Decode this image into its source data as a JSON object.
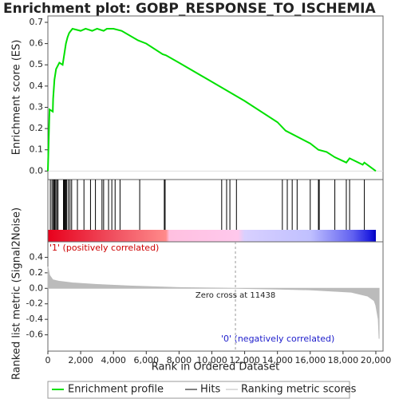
{
  "chart_data": [
    {
      "type": "line",
      "title": "Enrichment plot: GOBP_RESPONSE_TO_ISCHEMIA",
      "ylabel": "Enrichment score (ES)",
      "xlim": [
        0,
        20440
      ],
      "ylim": [
        -0.04,
        0.73
      ],
      "yticks": [
        {
          "value": 0,
          "label": "0.0"
        },
        {
          "value": 0.1,
          "label": "0.1"
        },
        {
          "value": 0.2,
          "label": "0.2"
        },
        {
          "value": 0.3,
          "label": "0.3"
        },
        {
          "value": 0.4,
          "label": "0.4"
        },
        {
          "value": 0.5,
          "label": "0.5"
        },
        {
          "value": 0.6,
          "label": "0.6"
        },
        {
          "value": 0.7,
          "label": "0.7"
        }
      ],
      "series": [
        {
          "name": "Enrichment profile",
          "color": "#00e000",
          "x": [
            0,
            100,
            300,
            320,
            400,
            500,
            700,
            900,
            1000,
            1100,
            1200,
            1300,
            1500,
            2000,
            2300,
            2700,
            3000,
            3400,
            3600,
            4000,
            4500,
            5500,
            6000,
            7000,
            7200,
            8000,
            10000,
            12000,
            14000,
            14500,
            16000,
            16500,
            17000,
            17500,
            18200,
            18400,
            19200,
            19300,
            20000
          ],
          "values": [
            0,
            0.29,
            0.28,
            0.34,
            0.43,
            0.48,
            0.51,
            0.5,
            0.55,
            0.6,
            0.63,
            0.65,
            0.67,
            0.66,
            0.67,
            0.66,
            0.67,
            0.66,
            0.67,
            0.67,
            0.66,
            0.615,
            0.6,
            0.55,
            0.545,
            0.51,
            0.42,
            0.33,
            0.23,
            0.19,
            0.13,
            0.1,
            0.09,
            0.065,
            0.04,
            0.06,
            0.03,
            0.04,
            0
          ]
        }
      ],
      "hits": {
        "name": "Hits",
        "color": "#000000",
        "x": [
          150,
          250,
          330,
          380,
          420,
          480,
          550,
          620,
          950,
          1000,
          1050,
          1100,
          1150,
          1250,
          1350,
          1450,
          1800,
          2200,
          2600,
          2900,
          3300,
          3400,
          3700,
          3900,
          4100,
          4400,
          5600,
          7100,
          7150,
          10600,
          10900,
          11100,
          11500,
          14300,
          14600,
          14900,
          15200,
          16000,
          16500,
          16550,
          17500,
          18200,
          18400,
          19300
        ]
      }
    },
    {
      "type": "area",
      "xlabel": "Rank in Ordered Dataset",
      "ylabel": "Ranked list metric (Signal2Noise)",
      "xlim": [
        0,
        20440
      ],
      "xticks": [
        0,
        {
          "value": 2000,
          "label": "2,000"
        },
        {
          "value": 4000,
          "label": "4,000"
        },
        {
          "value": 6000,
          "label": "6,000"
        },
        {
          "value": 8000,
          "label": "8,000"
        },
        {
          "value": 10000,
          "label": "10,000"
        },
        {
          "value": 12000,
          "label": "12,000"
        },
        {
          "value": 14000,
          "label": "14,000"
        },
        {
          "value": 16000,
          "label": "16,000"
        },
        {
          "value": 18000,
          "label": "18,000"
        },
        {
          "value": 20000,
          "label": "20,000"
        }
      ],
      "ylim": [
        -0.81,
        0.6
      ],
      "yticks": [
        {
          "value": 0.4,
          "label": "0.4"
        },
        {
          "value": 0.2,
          "label": "0.2"
        },
        {
          "value": 0,
          "label": "0.0"
        },
        {
          "value": -0.2,
          "label": "-0.2"
        },
        {
          "value": -0.4,
          "label": "-0.4"
        },
        {
          "value": -0.6,
          "label": "-0.6"
        }
      ],
      "series": [
        {
          "name": "Ranking metric scores",
          "color": "#bbbbbb",
          "x": [
            0,
            100,
            300,
            700,
            1500,
            3000,
            5000,
            8000,
            11438,
            14000,
            16000,
            18500,
            19500,
            19900,
            20000,
            20150,
            20200
          ],
          "values": [
            0.28,
            0.17,
            0.11,
            0.09,
            0.07,
            0.05,
            0.03,
            0.01,
            0,
            -0.01,
            -0.02,
            -0.05,
            -0.1,
            -0.16,
            -0.22,
            -0.4,
            -0.65
          ]
        }
      ],
      "annotation": {
        "text": "Zero cross at 11438",
        "x": 11438
      },
      "pos_label": "'1' (positively correlated)",
      "neg_label": "'0' (negatively correlated)"
    }
  ]
}
